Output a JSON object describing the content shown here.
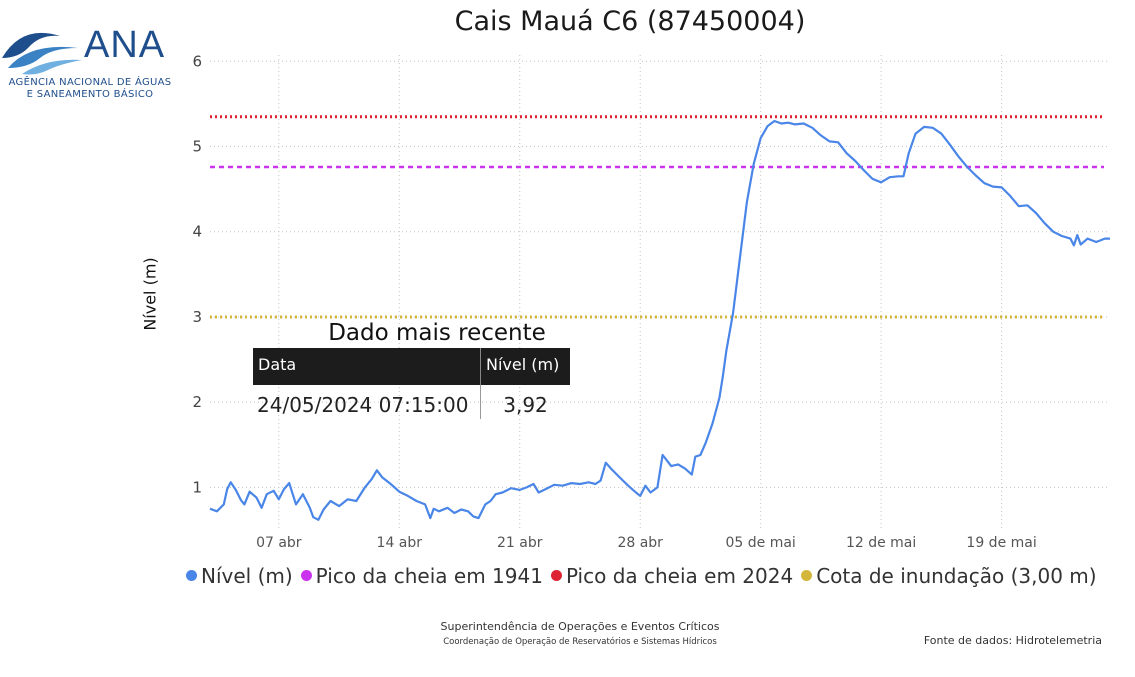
{
  "logo": {
    "name": "ANA",
    "line1": "AGÊNCIA NACIONAL DE ÁGUAS",
    "line2": "E SANEAMENTO BÁSICO"
  },
  "recent": {
    "title": "Dado mais recente",
    "col_date": "Data",
    "col_level": "Nível (m)",
    "date": "24/05/2024 07:15:00",
    "level": "3,92"
  },
  "footer": {
    "line1": "Superintendência de Operações e Eventos Críticos",
    "line2": "Coordenação de Operação de Reservatórios e Sistemas Hídricos",
    "source": "Fonte de dados: Hidrotelemetria"
  },
  "chart_data": {
    "type": "line",
    "title": "Cais Mauá C6 (87450004)",
    "ylabel": "Nível (m)",
    "xlabel": "",
    "ylim": [
      0.5,
      6
    ],
    "yticks": [
      1,
      2,
      3,
      4,
      5,
      6
    ],
    "x_unit": "days from 2024-04-01",
    "xlim": [
      2.0,
      54.3
    ],
    "xticks": [
      {
        "x": 6,
        "label": "07 abr"
      },
      {
        "x": 13,
        "label": "14 abr"
      },
      {
        "x": 20,
        "label": "21 abr"
      },
      {
        "x": 27,
        "label": "28 abr"
      },
      {
        "x": 34,
        "label": "05 de mai"
      },
      {
        "x": 41,
        "label": "12 de mai"
      },
      {
        "x": 48,
        "label": "19 de mai"
      }
    ],
    "grid": true,
    "legend_position": "bottom",
    "series": [
      {
        "name": "Nível (m)",
        "color": "#4a86e8",
        "style": "line",
        "points": [
          [
            2.0,
            0.75
          ],
          [
            2.4,
            0.72
          ],
          [
            2.8,
            0.8
          ],
          [
            3.0,
            0.98
          ],
          [
            3.2,
            1.06
          ],
          [
            3.5,
            0.97
          ],
          [
            3.8,
            0.85
          ],
          [
            4.0,
            0.8
          ],
          [
            4.3,
            0.95
          ],
          [
            4.7,
            0.88
          ],
          [
            5.0,
            0.76
          ],
          [
            5.3,
            0.92
          ],
          [
            5.7,
            0.96
          ],
          [
            6.0,
            0.86
          ],
          [
            6.3,
            0.98
          ],
          [
            6.6,
            1.05
          ],
          [
            7.0,
            0.8
          ],
          [
            7.4,
            0.92
          ],
          [
            7.8,
            0.76
          ],
          [
            8.0,
            0.65
          ],
          [
            8.3,
            0.62
          ],
          [
            8.6,
            0.74
          ],
          [
            9.0,
            0.84
          ],
          [
            9.5,
            0.78
          ],
          [
            10.0,
            0.86
          ],
          [
            10.5,
            0.84
          ],
          [
            11.0,
            1.0
          ],
          [
            11.4,
            1.1
          ],
          [
            11.7,
            1.2
          ],
          [
            12.0,
            1.12
          ],
          [
            12.5,
            1.04
          ],
          [
            13.0,
            0.95
          ],
          [
            13.5,
            0.9
          ],
          [
            14.0,
            0.84
          ],
          [
            14.5,
            0.8
          ],
          [
            14.8,
            0.64
          ],
          [
            15.0,
            0.75
          ],
          [
            15.3,
            0.72
          ],
          [
            15.8,
            0.76
          ],
          [
            16.2,
            0.7
          ],
          [
            16.6,
            0.74
          ],
          [
            17.0,
            0.72
          ],
          [
            17.3,
            0.66
          ],
          [
            17.6,
            0.64
          ],
          [
            18.0,
            0.8
          ],
          [
            18.3,
            0.84
          ],
          [
            18.6,
            0.92
          ],
          [
            19.0,
            0.94
          ],
          [
            19.5,
            0.99
          ],
          [
            20.0,
            0.97
          ],
          [
            20.4,
            1.0
          ],
          [
            20.8,
            1.04
          ],
          [
            21.1,
            0.94
          ],
          [
            21.5,
            0.98
          ],
          [
            22.0,
            1.03
          ],
          [
            22.5,
            1.02
          ],
          [
            23.0,
            1.05
          ],
          [
            23.5,
            1.04
          ],
          [
            24.0,
            1.06
          ],
          [
            24.4,
            1.04
          ],
          [
            24.7,
            1.08
          ],
          [
            25.0,
            1.29
          ],
          [
            25.3,
            1.22
          ],
          [
            25.7,
            1.14
          ],
          [
            26.0,
            1.08
          ],
          [
            26.3,
            1.02
          ],
          [
            26.7,
            0.95
          ],
          [
            27.0,
            0.9
          ],
          [
            27.3,
            1.02
          ],
          [
            27.6,
            0.94
          ],
          [
            28.0,
            1.0
          ],
          [
            28.3,
            1.38
          ],
          [
            28.5,
            1.33
          ],
          [
            28.8,
            1.25
          ],
          [
            29.2,
            1.27
          ],
          [
            29.6,
            1.22
          ],
          [
            30.0,
            1.15
          ],
          [
            30.2,
            1.36
          ],
          [
            30.5,
            1.38
          ],
          [
            30.8,
            1.52
          ],
          [
            31.2,
            1.75
          ],
          [
            31.6,
            2.05
          ],
          [
            31.8,
            2.3
          ],
          [
            32.0,
            2.6
          ],
          [
            32.4,
            3.05
          ],
          [
            32.8,
            3.7
          ],
          [
            33.2,
            4.35
          ],
          [
            33.6,
            4.8
          ],
          [
            34.0,
            5.1
          ],
          [
            34.4,
            5.24
          ],
          [
            34.8,
            5.3
          ],
          [
            35.2,
            5.27
          ],
          [
            35.6,
            5.28
          ],
          [
            36.0,
            5.26
          ],
          [
            36.5,
            5.27
          ],
          [
            37.0,
            5.22
          ],
          [
            37.5,
            5.13
          ],
          [
            38.0,
            5.06
          ],
          [
            38.5,
            5.05
          ],
          [
            39.0,
            4.92
          ],
          [
            39.5,
            4.83
          ],
          [
            40.0,
            4.72
          ],
          [
            40.5,
            4.62
          ],
          [
            41.0,
            4.58
          ],
          [
            41.5,
            4.64
          ],
          [
            42.0,
            4.65
          ],
          [
            42.3,
            4.65
          ],
          [
            42.6,
            4.92
          ],
          [
            43.0,
            5.15
          ],
          [
            43.5,
            5.23
          ],
          [
            44.0,
            5.22
          ],
          [
            44.5,
            5.15
          ],
          [
            45.0,
            5.02
          ],
          [
            45.5,
            4.88
          ],
          [
            46.0,
            4.76
          ],
          [
            46.5,
            4.66
          ],
          [
            47.0,
            4.57
          ],
          [
            47.5,
            4.53
          ],
          [
            48.0,
            4.52
          ],
          [
            48.5,
            4.42
          ],
          [
            49.0,
            4.3
          ],
          [
            49.5,
            4.31
          ],
          [
            50.0,
            4.22
          ],
          [
            50.5,
            4.1
          ],
          [
            51.0,
            4.0
          ],
          [
            51.5,
            3.95
          ],
          [
            52.0,
            3.92
          ],
          [
            52.2,
            3.84
          ],
          [
            52.4,
            3.96
          ],
          [
            52.6,
            3.85
          ],
          [
            53.0,
            3.92
          ],
          [
            53.5,
            3.88
          ],
          [
            54.0,
            3.92
          ],
          [
            54.3,
            3.92
          ]
        ]
      },
      {
        "name": "Pico da cheia em 1941",
        "color": "#cc33ee",
        "style": "hline-dashed",
        "value": 4.76
      },
      {
        "name": "Pico da cheia em 2024",
        "color": "#dd2233",
        "style": "hline-dotted",
        "value": 5.35
      },
      {
        "name": "Cota de inundação (3,00 m)",
        "color": "#d4b63a",
        "style": "hline-dotted",
        "value": 3.0
      }
    ]
  }
}
